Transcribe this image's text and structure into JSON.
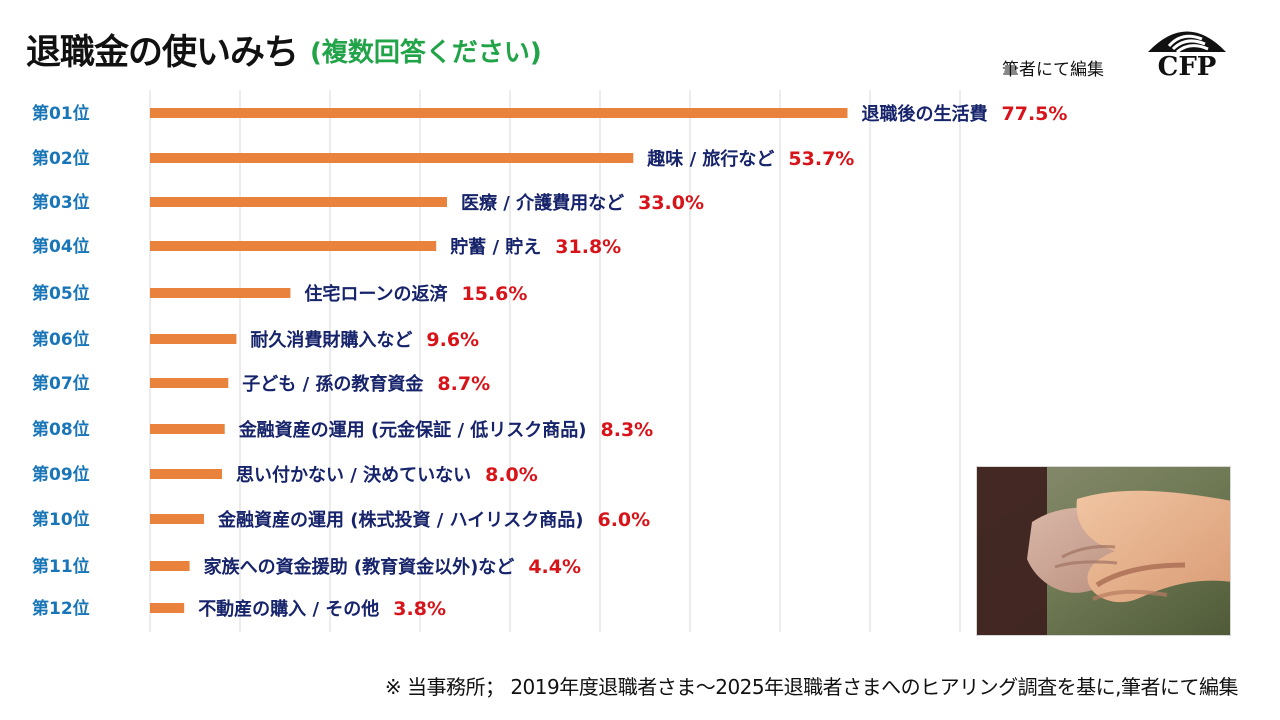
{
  "header": {
    "title": "退職金の使いみち",
    "subtitle": "(複数回答ください)",
    "editor_note": "筆者にて編集",
    "logo_text": "CFP"
  },
  "footer": {
    "source": "※ 当事務所； 2019年度退職者さま～2025年退職者さまへのヒアリング調査を基に,筆者にて編集"
  },
  "colors": {
    "bar": "#e8823d",
    "rank": "#1875b7",
    "category": "#17246b",
    "value": "#d7141a",
    "subtitle": "#21a348",
    "gridline": "#d9d9d9"
  },
  "chart_data": {
    "type": "bar",
    "orientation": "horizontal",
    "title": "退職金の使いみち",
    "subtitle": "(複数回答ください)",
    "unit": "%",
    "xlim": [
      0,
      90
    ],
    "gridlines": true,
    "ranks": [
      "第01位",
      "第02位",
      "第03位",
      "第04位",
      "第05位",
      "第06位",
      "第07位",
      "第08位",
      "第09位",
      "第10位",
      "第11位",
      "第12位"
    ],
    "categories": [
      "退職後の生活費",
      "趣味 / 旅行など",
      "医療 / 介護費用など",
      "貯蓄 / 貯え",
      "住宅ローンの返済",
      "耐久消費財購入など",
      "子ども / 孫の教育資金",
      "金融資産の運用 (元金保証 / 低リスク商品)",
      "思い付かない / 決めていない",
      "金融資産の運用 (株式投資 / ハイリスク商品)",
      "家族への資金援助 (教育資金以外)など",
      "不動産の購入 / その他"
    ],
    "values": [
      77.5,
      53.7,
      33.0,
      31.8,
      15.6,
      9.6,
      8.7,
      8.3,
      8.0,
      6.0,
      4.4,
      3.8
    ],
    "value_labels": [
      "77.5%",
      "53.7%",
      "33.0%",
      "31.8%",
      "15.6%",
      "9.6%",
      "8.7%",
      "8.3%",
      "8.0%",
      "6.0%",
      "4.4%",
      "3.8%"
    ]
  }
}
